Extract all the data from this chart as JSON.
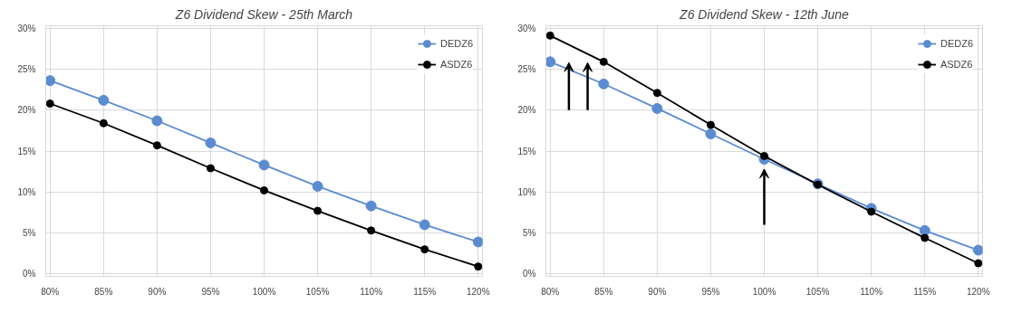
{
  "chart_data": [
    {
      "type": "line",
      "title": "Z6 Dividend Skew - 25th March",
      "categories": [
        "80%",
        "85%",
        "90%",
        "95%",
        "100%",
        "105%",
        "110%",
        "115%",
        "120%"
      ],
      "series": [
        {
          "name": "DEDZ6",
          "color": "#5b8bd0",
          "values": [
            23.6,
            21.2,
            18.7,
            16.0,
            13.3,
            10.7,
            8.3,
            6.0,
            3.9
          ]
        },
        {
          "name": "ASDZ6",
          "color": "#000000",
          "values": [
            20.8,
            18.4,
            15.7,
            12.9,
            10.2,
            7.7,
            5.3,
            3.0,
            0.9
          ]
        }
      ],
      "ylim": [
        0,
        30
      ],
      "yticks": [
        {
          "value": 0,
          "label": "0%"
        },
        {
          "value": 5,
          "label": "5%"
        },
        {
          "value": 10,
          "label": "10%"
        },
        {
          "value": 15,
          "label": "15%"
        },
        {
          "value": 20,
          "label": "20%"
        },
        {
          "value": 25,
          "label": "25%"
        },
        {
          "value": 30,
          "label": "30%"
        }
      ],
      "grid": true,
      "legend": "top right",
      "marker": "circle"
    },
    {
      "type": "line",
      "title": "Z6 Dividend Skew - 12th June",
      "categories": [
        "80%",
        "85%",
        "90%",
        "95%",
        "100%",
        "105%",
        "110%",
        "115%",
        "120%"
      ],
      "series": [
        {
          "name": "DEDZ6",
          "color": "#5b8bd0",
          "values": [
            25.9,
            23.2,
            20.2,
            17.1,
            14.0,
            11.0,
            8.0,
            5.3,
            2.9
          ]
        },
        {
          "name": "ASDZ6",
          "color": "#000000",
          "values": [
            29.1,
            25.9,
            22.1,
            18.2,
            14.4,
            10.9,
            7.6,
            4.4,
            1.3
          ]
        }
      ],
      "ylim": [
        0,
        30
      ],
      "yticks": [
        {
          "value": 0,
          "label": "0%"
        },
        {
          "value": 5,
          "label": "5%"
        },
        {
          "value": 10,
          "label": "10%"
        },
        {
          "value": 15,
          "label": "15%"
        },
        {
          "value": 20,
          "label": "20%"
        },
        {
          "value": 25,
          "label": "25%"
        },
        {
          "value": 30,
          "label": "30%"
        }
      ],
      "grid": true,
      "legend": "top right",
      "marker": "circle"
    }
  ]
}
